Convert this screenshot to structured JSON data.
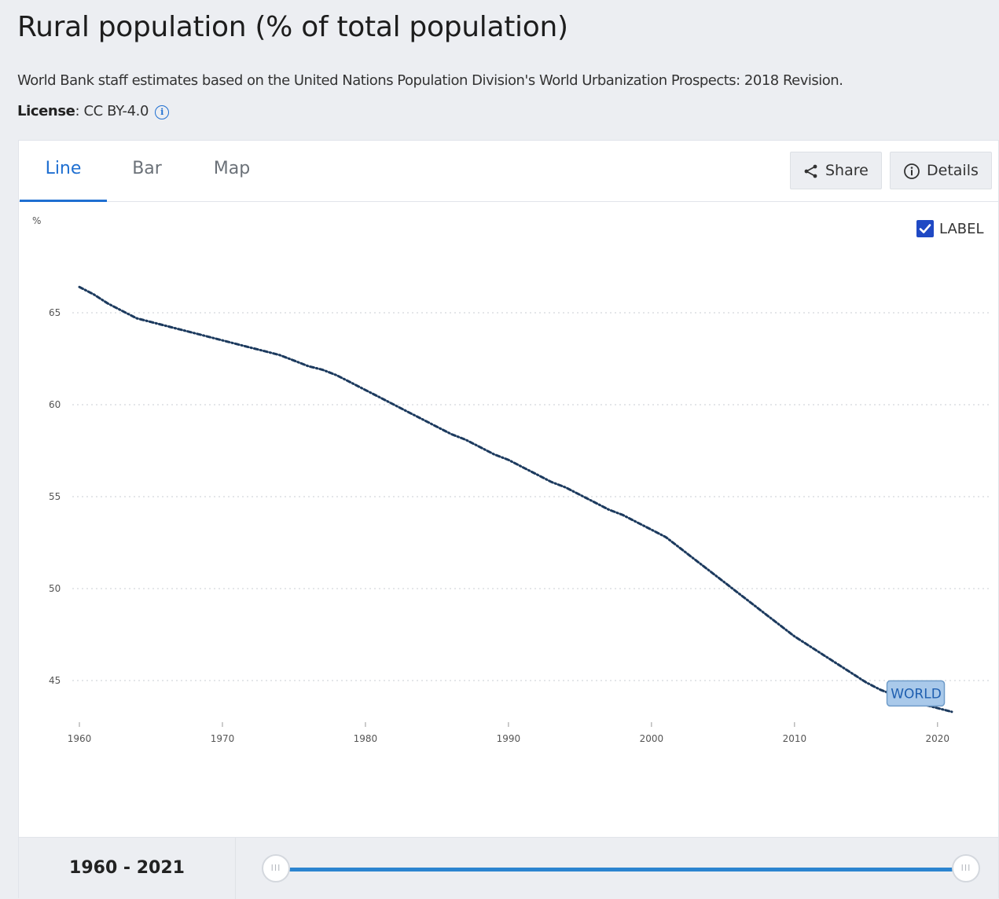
{
  "header": {
    "title": "Rural population (% of total population)",
    "source": "World Bank staff estimates based on the United Nations Population Division's World Urbanization Prospects: 2018 Revision.",
    "license_label": "License",
    "license_value": ": CC BY-4.0"
  },
  "tabs": [
    {
      "label": "Line",
      "active": true
    },
    {
      "label": "Bar",
      "active": false
    },
    {
      "label": "Map",
      "active": false
    }
  ],
  "actions": {
    "share_label": "Share",
    "details_label": "Details"
  },
  "label_toggle": {
    "label": "LABEL",
    "checked": true
  },
  "range": {
    "label": "1960 - 2021",
    "start": 1960,
    "end": 2021
  },
  "colors": {
    "accent": "#1f6fd1",
    "line": "#1c3a5e",
    "world_label_bg": "#a9c9ea",
    "world_label_text": "#1f5fb0"
  },
  "chart_data": {
    "type": "line",
    "ylabel": "%",
    "xlabel": "",
    "xlim": [
      1960,
      2021
    ],
    "ylim": [
      42,
      70
    ],
    "x_ticks": [
      1960,
      1970,
      1980,
      1990,
      2000,
      2010,
      2020
    ],
    "y_ticks": [
      45,
      50,
      55,
      60,
      65
    ],
    "grid": "horizontal dotted",
    "series": [
      {
        "name": "WORLD",
        "x": [
          1960,
          1961,
          1962,
          1963,
          1964,
          1965,
          1966,
          1967,
          1968,
          1969,
          1970,
          1971,
          1972,
          1973,
          1974,
          1975,
          1976,
          1977,
          1978,
          1979,
          1980,
          1981,
          1982,
          1983,
          1984,
          1985,
          1986,
          1987,
          1988,
          1989,
          1990,
          1991,
          1992,
          1993,
          1994,
          1995,
          1996,
          1997,
          1998,
          1999,
          2000,
          2001,
          2002,
          2003,
          2004,
          2005,
          2006,
          2007,
          2008,
          2009,
          2010,
          2011,
          2012,
          2013,
          2014,
          2015,
          2016,
          2017,
          2018,
          2019,
          2020,
          2021
        ],
        "values": [
          66.4,
          66.0,
          65.5,
          65.1,
          64.7,
          64.5,
          64.3,
          64.1,
          63.9,
          63.7,
          63.5,
          63.3,
          63.1,
          62.9,
          62.7,
          62.4,
          62.1,
          61.9,
          61.6,
          61.2,
          60.8,
          60.4,
          60.0,
          59.6,
          59.2,
          58.8,
          58.4,
          58.1,
          57.7,
          57.3,
          57.0,
          56.6,
          56.2,
          55.8,
          55.5,
          55.1,
          54.7,
          54.3,
          54.0,
          53.6,
          53.2,
          52.8,
          52.2,
          51.6,
          51.0,
          50.4,
          49.8,
          49.2,
          48.6,
          48.0,
          47.4,
          46.9,
          46.4,
          45.9,
          45.4,
          44.9,
          44.5,
          44.2,
          43.9,
          43.7,
          43.5,
          43.3
        ]
      }
    ]
  }
}
